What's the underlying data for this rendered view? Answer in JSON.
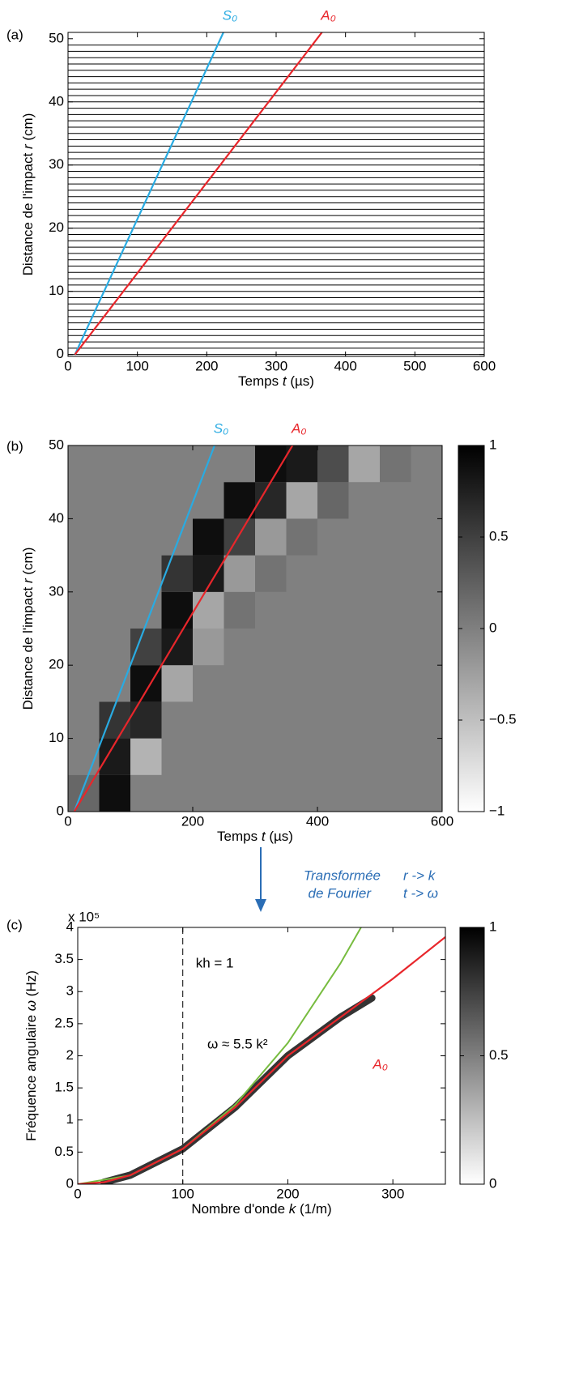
{
  "chart_data": [
    {
      "type": "waterfall",
      "panel_label": "(a)",
      "xlabel": [
        "Temps",
        "t",
        "(µs)"
      ],
      "ylabel": [
        "Distance de l'impact",
        "r",
        "(cm)"
      ],
      "xlim": [
        0,
        600
      ],
      "ylim": [
        -0.3,
        51
      ],
      "xticks": [
        0,
        100,
        200,
        300,
        400,
        500,
        600
      ],
      "yticks": [
        0,
        10,
        20,
        30,
        40,
        50
      ],
      "trace_color": "#000000",
      "trace_offsets": [
        0,
        1,
        2,
        3,
        4,
        5,
        6,
        7,
        8,
        9,
        10,
        11,
        12,
        13,
        14,
        15,
        16,
        17,
        18,
        19,
        20,
        21,
        22,
        23,
        24,
        25,
        26,
        27,
        28,
        29,
        30,
        31,
        32,
        33,
        34,
        35,
        36,
        37,
        38,
        39,
        40,
        41,
        42,
        43,
        44,
        45,
        46,
        47,
        48,
        49
      ],
      "series": [
        {
          "name": "S₀",
          "color": "#29abe2",
          "x": [
            10,
            224
          ],
          "values": [
            0,
            51
          ]
        },
        {
          "name": "A₀",
          "color": "#e8262b",
          "x": [
            10,
            366
          ],
          "values": [
            0,
            51
          ]
        }
      ]
    },
    {
      "type": "heatmap",
      "panel_label": "(b)",
      "xlabel": [
        "Temps",
        "t",
        "(µs)"
      ],
      "ylabel": [
        "Distance de l'impact",
        "r",
        "(cm)"
      ],
      "xlim": [
        0,
        600
      ],
      "ylim": [
        0,
        50
      ],
      "xticks": [
        0,
        200,
        400,
        600
      ],
      "yticks": [
        0,
        10,
        20,
        30,
        40,
        50
      ],
      "t_bins": [
        0,
        50,
        100,
        150,
        200,
        250,
        300,
        350,
        400,
        450,
        500,
        550,
        600
      ],
      "r_bins": [
        0,
        5,
        10,
        15,
        20,
        25,
        30,
        35,
        40,
        45,
        50
      ],
      "z": [
        [
          0.2,
          0.9,
          0,
          0,
          0,
          0,
          0,
          0,
          0,
          0,
          0,
          0
        ],
        [
          0,
          0.8,
          -0.4,
          0,
          0,
          0,
          0,
          0,
          0,
          0,
          0,
          0
        ],
        [
          0,
          0.6,
          0.7,
          0,
          0,
          0,
          0,
          0,
          0,
          0,
          0,
          0
        ],
        [
          0,
          0,
          0.9,
          -0.3,
          0,
          0,
          0,
          0,
          0,
          0,
          0,
          0
        ],
        [
          0,
          0,
          0.5,
          0.8,
          -0.2,
          0,
          0,
          0,
          0,
          0,
          0,
          0
        ],
        [
          0,
          0,
          0,
          0.9,
          -0.3,
          0.1,
          0,
          0,
          0,
          0,
          0,
          0
        ],
        [
          0,
          0,
          0,
          0.6,
          0.8,
          -0.2,
          0.1,
          0,
          0,
          0,
          0,
          0
        ],
        [
          0,
          0,
          0,
          0,
          0.9,
          0.5,
          -0.2,
          0.1,
          0,
          0,
          0,
          0
        ],
        [
          0,
          0,
          0,
          0,
          0,
          0.9,
          0.7,
          -0.3,
          0.2,
          0,
          0,
          0
        ],
        [
          0,
          0,
          0,
          0,
          0,
          0,
          0.9,
          0.8,
          0.4,
          -0.3,
          0.1,
          0
        ]
      ],
      "colorbar": {
        "lim": [
          -1,
          1
        ],
        "colors": [
          "#ffffff",
          "#000000"
        ],
        "ticks": [
          {
            "value": -1,
            "label": "−1"
          },
          {
            "value": -0.5,
            "label": "−0.5"
          },
          0,
          0.5,
          1
        ]
      },
      "series": [
        {
          "name": "S₀",
          "color": "#29abe2",
          "x": [
            10,
            235
          ],
          "values": [
            0,
            50
          ]
        },
        {
          "name": "A₀",
          "color": "#e8262b",
          "x": [
            10,
            360
          ],
          "values": [
            0,
            50
          ]
        }
      ]
    },
    {
      "type": "dispersion",
      "panel_label": "(c)",
      "xlabel": [
        "Nombre d'onde",
        "k",
        "(1/m)"
      ],
      "ylabel": [
        "Fréquence angulaire",
        "ω",
        "(Hz)"
      ],
      "y_multiplier": "x 10⁵",
      "xlim": [
        0,
        350
      ],
      "ylim": [
        0,
        4
      ],
      "xticks": [
        0,
        100,
        200,
        300
      ],
      "yticks": [
        0,
        0.5,
        1,
        1.5,
        2,
        2.5,
        3,
        3.5,
        4
      ],
      "colorbar": {
        "lim": [
          0,
          1
        ],
        "colors": [
          "#ffffff",
          "#000000"
        ],
        "ticks": [
          0,
          0.5,
          1
        ]
      },
      "ridge": {
        "color": "#111111",
        "x": [
          25,
          50,
          100,
          150,
          200,
          250,
          280
        ],
        "values": [
          0.03,
          0.14,
          0.55,
          1.2,
          2.0,
          2.6,
          2.9
        ]
      },
      "vline": {
        "x": 100,
        "label": "kh = 1"
      },
      "fit": {
        "label": "ω ≈ 5.5 k²",
        "color": "#77bc3f",
        "x": [
          0,
          50,
          100,
          150,
          200,
          250,
          270
        ],
        "values": [
          0,
          0.1375,
          0.55,
          1.2375,
          2.2,
          3.4375,
          4.0095
        ]
      },
      "series": [
        {
          "name": "A₀",
          "color": "#e8262b",
          "x": [
            0,
            25,
            50,
            100,
            150,
            200,
            250,
            300,
            350
          ],
          "values": [
            0,
            0.03,
            0.14,
            0.55,
            1.2,
            2.0,
            2.6,
            3.2,
            3.85
          ]
        }
      ]
    }
  ],
  "transform": {
    "lines": [
      "Transformée",
      "de Fourier"
    ],
    "maps": [
      "r -> k",
      "t -> ω"
    ]
  }
}
